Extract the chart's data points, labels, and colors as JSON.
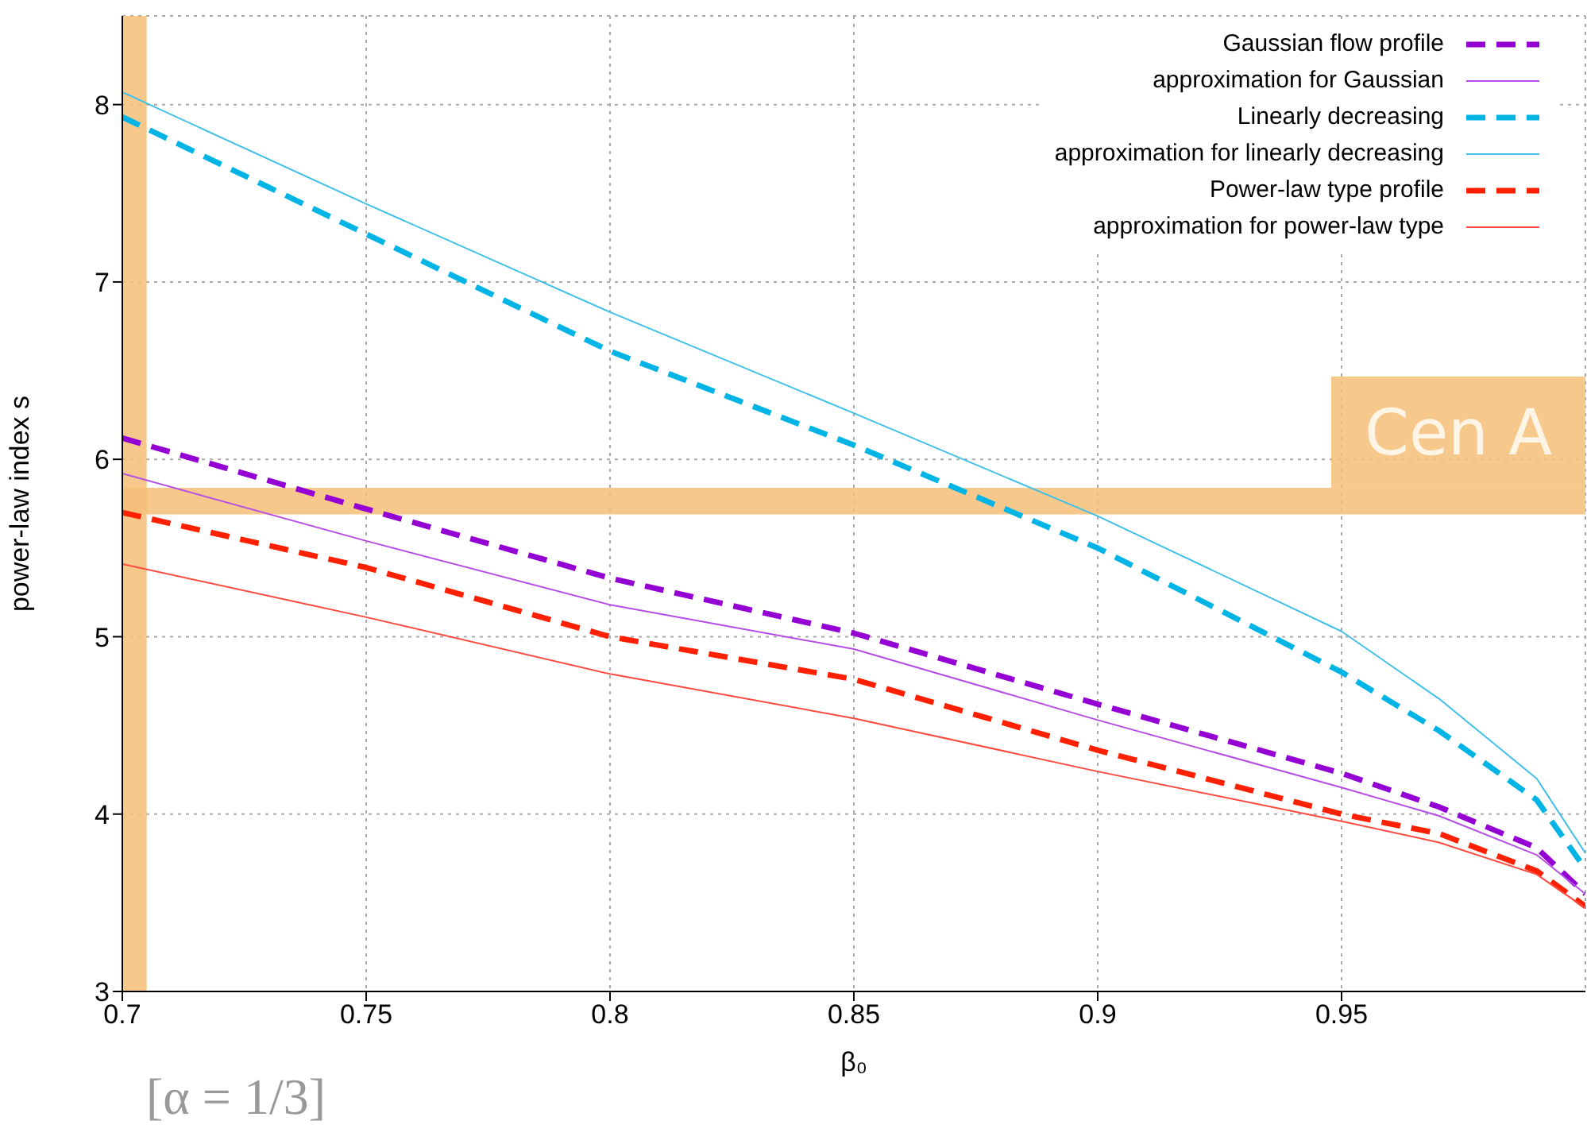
{
  "chart_data": {
    "type": "line",
    "xlabel": "β₀",
    "ylabel": "power-law index s",
    "xlim": [
      0.7,
      1.0
    ],
    "xticks": [
      0.7,
      0.75,
      0.8,
      0.85,
      0.9,
      0.95
    ],
    "ylim": [
      3,
      8.5
    ],
    "yticks": [
      3,
      4,
      5,
      6,
      7,
      8
    ],
    "grid": true,
    "legend": "top right",
    "marker": "none",
    "x": [
      0.7,
      0.75,
      0.8,
      0.85,
      0.9,
      0.95,
      0.97,
      0.99,
      1.0
    ],
    "series": [
      {
        "name": "Gaussian flow profile",
        "color": "#9400d3",
        "line_style": "dashed",
        "values": [
          6.12,
          5.72,
          5.33,
          5.02,
          4.62,
          4.23,
          4.04,
          3.81,
          3.55
        ]
      },
      {
        "name": "approximation for Gaussian",
        "color": "#b44ee6",
        "line_style": "solid",
        "values": [
          5.92,
          5.54,
          5.18,
          4.93,
          4.53,
          4.15,
          3.99,
          3.77,
          3.55
        ]
      },
      {
        "name": "Linearly decreasing",
        "color": "#00b4e6",
        "line_style": "dashed",
        "values": [
          7.93,
          7.27,
          6.61,
          6.08,
          5.5,
          4.8,
          4.47,
          4.08,
          3.69
        ]
      },
      {
        "name": "approximation for linearly decreasing",
        "color": "#40c0e8",
        "line_style": "solid",
        "values": [
          8.07,
          7.44,
          6.83,
          6.26,
          5.68,
          5.03,
          4.65,
          4.2,
          3.78
        ]
      },
      {
        "name": "Power-law type profile",
        "color": "#ff2000",
        "line_style": "dashed",
        "values": [
          5.7,
          5.39,
          5.0,
          4.76,
          4.36,
          4.0,
          3.89,
          3.68,
          3.48
        ]
      },
      {
        "name": "approximation for power-law type",
        "color": "#ff4a40",
        "line_style": "solid",
        "values": [
          5.41,
          5.11,
          4.79,
          4.54,
          4.24,
          3.96,
          3.84,
          3.66,
          3.47
        ]
      }
    ],
    "bands": [
      {
        "axis": "y",
        "from": 5.69,
        "to": 5.84,
        "label": "Cen A",
        "color": "#f5be78"
      },
      {
        "axis": "x",
        "from": 0.7,
        "to": 0.705,
        "color": "#f5be78"
      }
    ],
    "annotations": [
      "[α = 1/3]"
    ]
  }
}
